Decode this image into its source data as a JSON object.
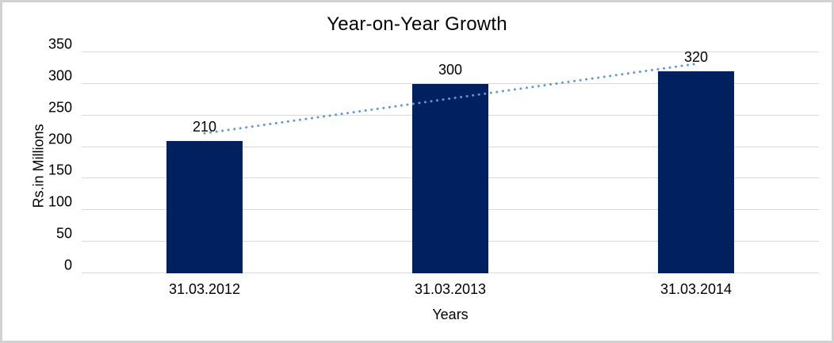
{
  "window": {
    "background": "#ffffff",
    "border_color": "#d2d2d2"
  },
  "chart_data": {
    "type": "bar",
    "title": "Year-on-Year Growth",
    "xlabel": "Years",
    "ylabel": "Rs.in Millions",
    "categories": [
      "31.03.2012",
      "31.03.2013",
      "31.03.2014"
    ],
    "values": [
      210,
      300,
      320
    ],
    "data_labels": [
      "210",
      "300",
      "320"
    ],
    "yticks": [
      0,
      50,
      100,
      150,
      200,
      250,
      300,
      350
    ],
    "ylim": [
      0,
      350
    ],
    "grid": true,
    "legend": "none",
    "bar_color": "#002060",
    "gridline_color": "#d9d9d9",
    "axis_line_color": "#d9d9d9",
    "text_color": "#000000",
    "trendline": {
      "type": "linear",
      "style": "dotted",
      "color": "#5b9bd5",
      "start_value": 221.7,
      "end_value": 331.7
    }
  }
}
